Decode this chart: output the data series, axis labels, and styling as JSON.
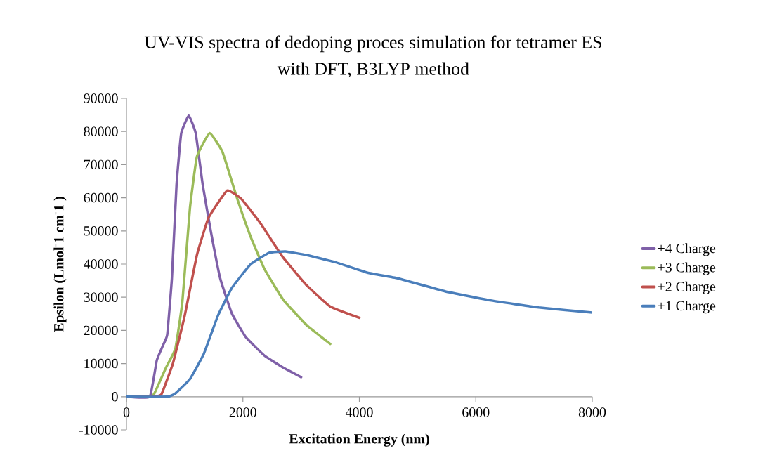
{
  "chart_data": {
    "type": "line",
    "title": "UV-VIS spectra of dedoping proces simulation for tetramer ES\nwith DFT, B3LYP method",
    "xlabel": "Excitation Energy (nm)",
    "ylabel": "Epsilon (Lmol$^{-}$1 cm$^{-}$1 )",
    "xlim": [
      0,
      8000
    ],
    "ylim": [
      -10000,
      90000
    ],
    "xticks": [
      0,
      2000,
      4000,
      6000,
      8000
    ],
    "yticks": [
      -10000,
      0,
      10000,
      20000,
      30000,
      40000,
      50000,
      60000,
      70000,
      80000,
      90000
    ],
    "grid": false,
    "legend": "right",
    "marker": "none",
    "line_style": "solid",
    "series": [
      {
        "name": "+4 Charge",
        "color": "#7f60a8",
        "x": [
          0,
          400,
          520,
          620,
          700,
          780,
          860,
          940,
          1070,
          1190,
          1310,
          1450,
          1610,
          1810,
          2050,
          2370,
          2690,
          3000
        ],
        "values": [
          0,
          0,
          10900,
          15200,
          18700,
          35700,
          63900,
          79400,
          84800,
          79400,
          63900,
          49800,
          35700,
          25100,
          18000,
          12400,
          8800,
          5900
        ]
      },
      {
        "name": "+3 Charge",
        "color": "#9bbb59",
        "x": [
          0,
          400,
          480,
          680,
          840,
          960,
          1090,
          1210,
          1430,
          1650,
          1890,
          2130,
          2370,
          2690,
          3100,
          3500
        ],
        "values": [
          0,
          0,
          1000,
          8800,
          14500,
          28600,
          56800,
          72400,
          79500,
          73800,
          60400,
          48400,
          38500,
          29300,
          21500,
          15900
        ]
      },
      {
        "name": "+2 Charge",
        "color": "#c0504d",
        "x": [
          0,
          450,
          600,
          800,
          1000,
          1210,
          1410,
          1730,
          1970,
          2290,
          2690,
          3100,
          3500,
          4000
        ],
        "values": [
          0,
          0,
          700,
          10200,
          24400,
          42700,
          54000,
          62200,
          59700,
          52600,
          42000,
          33500,
          27200,
          23800
        ]
      },
      {
        "name": "+1 Charge",
        "color": "#4a7ebb",
        "x": [
          0,
          700,
          840,
          1090,
          1330,
          1570,
          1810,
          2130,
          2450,
          2730,
          3100,
          3580,
          4140,
          4660,
          5470,
          6270,
          7080,
          8000
        ],
        "values": [
          0,
          0,
          1000,
          5300,
          13000,
          24400,
          32800,
          39900,
          43400,
          43800,
          42700,
          40600,
          37400,
          35700,
          31800,
          29000,
          26900,
          25400
        ]
      }
    ]
  }
}
